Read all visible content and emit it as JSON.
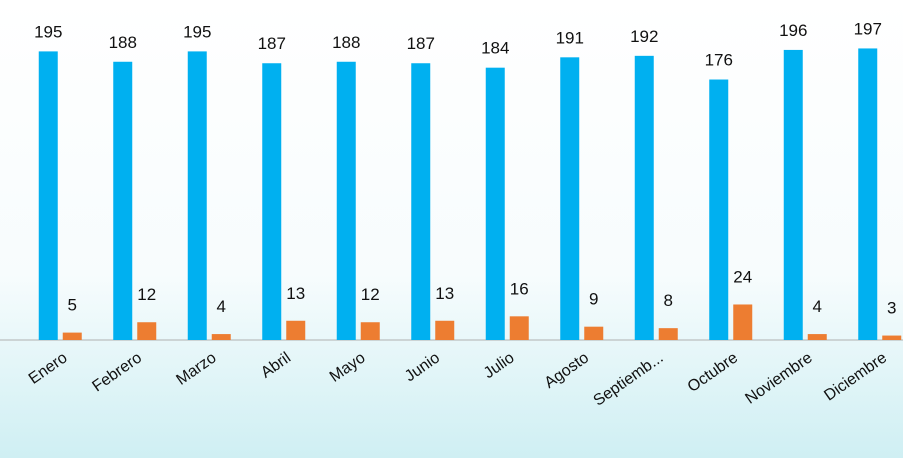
{
  "chart_data": {
    "type": "bar",
    "categories": [
      "Enero",
      "Febrero",
      "Marzo",
      "Abril",
      "Mayo",
      "Junio",
      "Julio",
      "Agosto",
      "Septiemb...",
      "Octubre",
      "Noviembre",
      "Diciembre"
    ],
    "series": [
      {
        "color": "#00b0f0",
        "values": [
          195,
          188,
          195,
          187,
          188,
          187,
          184,
          191,
          192,
          176,
          196,
          197
        ]
      },
      {
        "color": "#ed7d31",
        "values": [
          5,
          12,
          4,
          13,
          12,
          13,
          16,
          9,
          8,
          24,
          4,
          3
        ]
      }
    ],
    "ylim": [
      0,
      200
    ]
  }
}
